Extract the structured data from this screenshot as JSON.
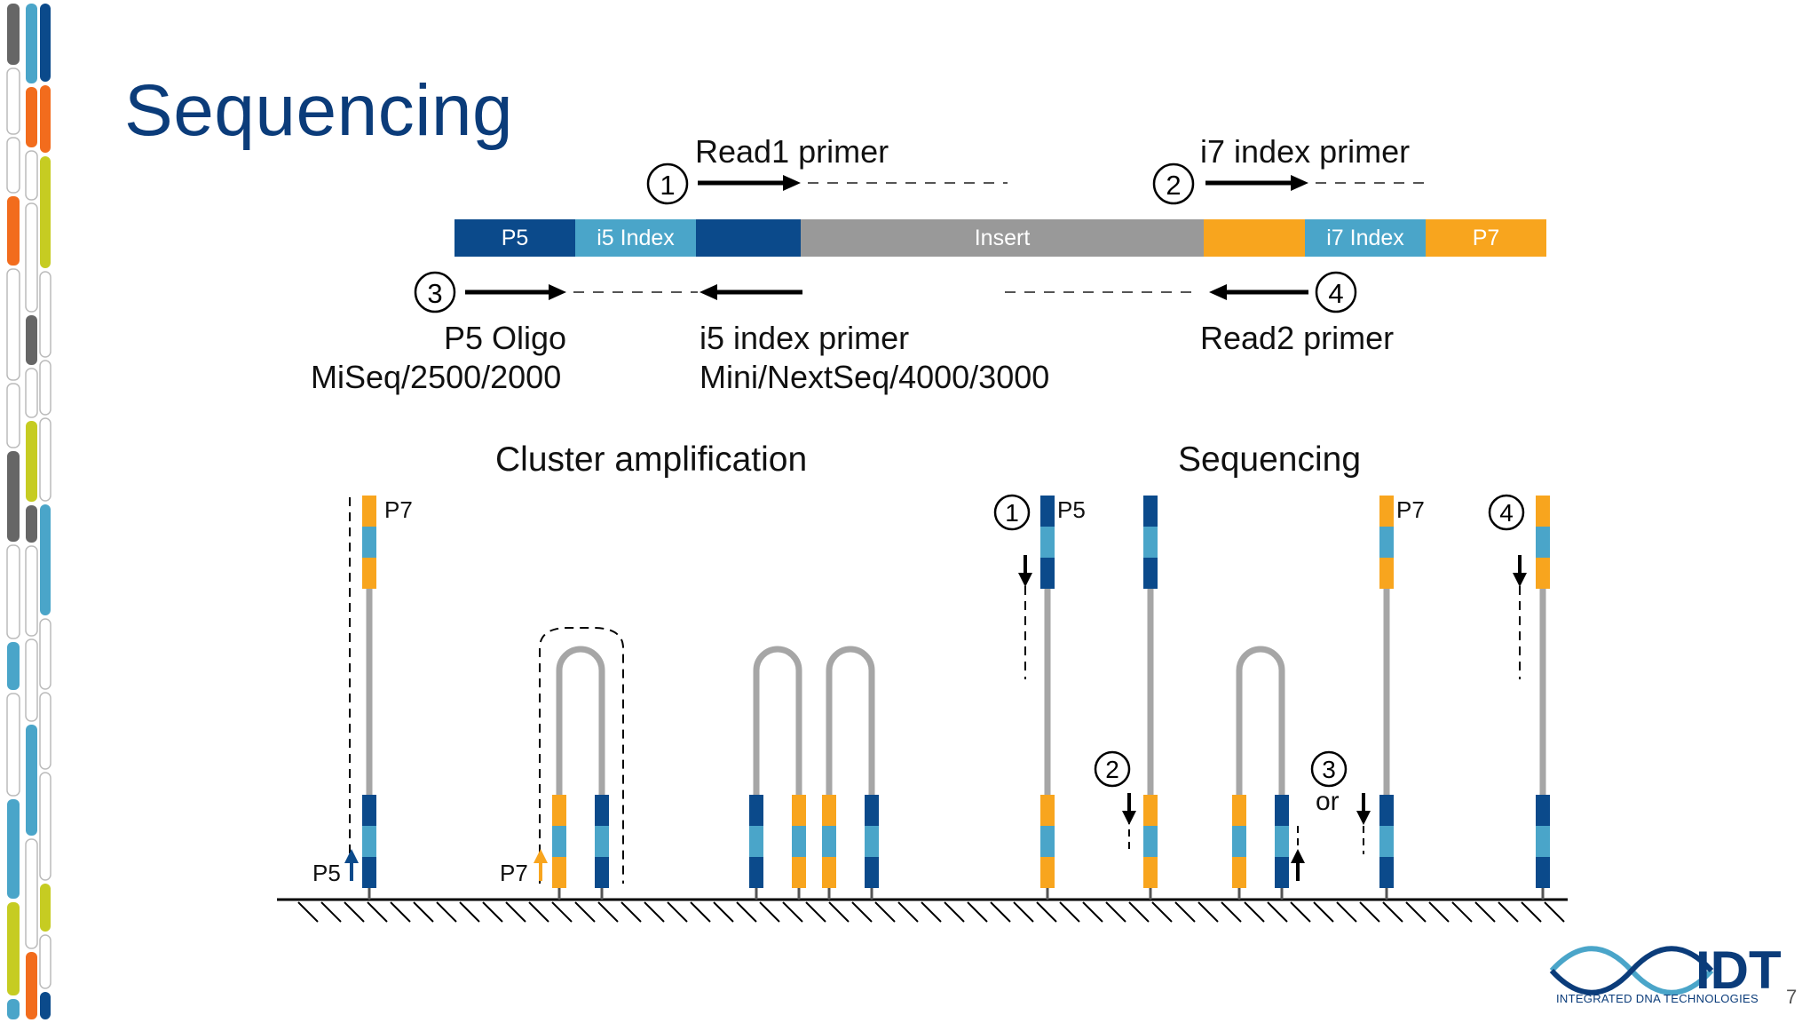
{
  "title": "Sequencing",
  "construct": {
    "segments": [
      {
        "label": "P5",
        "color": "#0b4a8b"
      },
      {
        "label": "i5 Index",
        "color": "#4aa5c9"
      },
      {
        "label": "",
        "color": "#0b4a8b"
      },
      {
        "label": "Insert",
        "color": "#999999"
      },
      {
        "label": "",
        "color": "#f8a51e"
      },
      {
        "label": "i7 Index",
        "color": "#4aa5c9"
      },
      {
        "label": "P7",
        "color": "#f8a51e"
      }
    ]
  },
  "primers": {
    "read1": {
      "num": "1",
      "label": "Read1 primer"
    },
    "i7": {
      "num": "2",
      "label": "i7 index primer"
    },
    "p5_oligo": {
      "num": "3",
      "label": "P5 Oligo",
      "sub": "MiSeq/2500/2000"
    },
    "i5": {
      "label": "i5 index primer",
      "sub": "Mini/NextSeq/4000/3000"
    },
    "read2": {
      "num": "4",
      "label": "Read2 primer"
    }
  },
  "sections": {
    "cluster": "Cluster amplification",
    "sequencing": "Sequencing"
  },
  "strand_labels": {
    "p7_a": "P7",
    "p5_a": "P5",
    "p7_b": "P7",
    "p5_b": "P5",
    "p7_c": "P7"
  },
  "step_nums": {
    "s1": "1",
    "s2": "2",
    "s3": "3",
    "s4": "4",
    "or": "or"
  },
  "logo": {
    "text": "IDT",
    "subtitle": "INTEGRATED DNA TECHNOLOGIES"
  },
  "page_number": "7",
  "colors": {
    "navy": "#0b4a8b",
    "light_blue": "#4aa5c9",
    "orange": "#f8a51e",
    "gray": "#999999",
    "title": "#0b3c7a",
    "deco_palette": [
      "#0b4a8b",
      "#4aa5c9",
      "#f26c1d",
      "#c6cc22",
      "#666666"
    ]
  }
}
